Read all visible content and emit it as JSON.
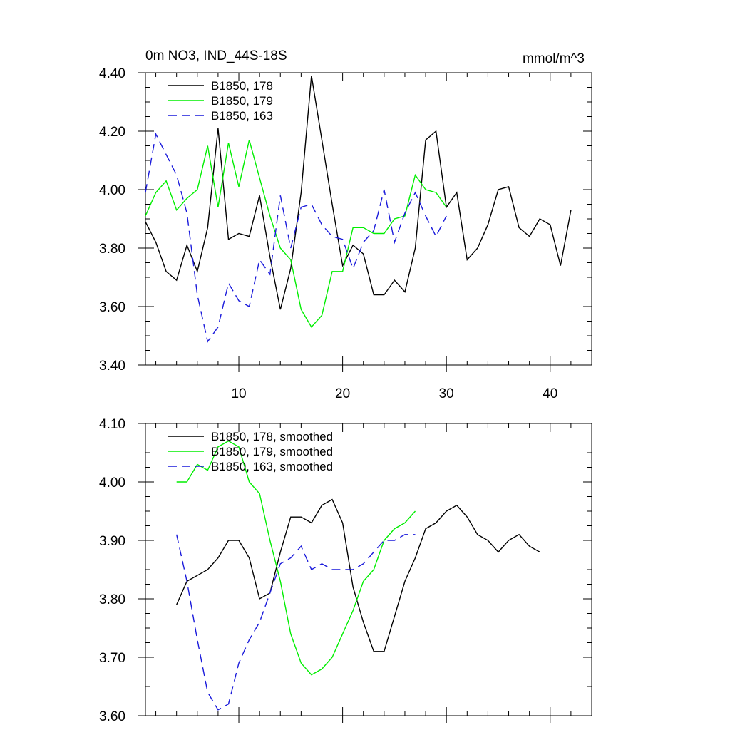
{
  "chart_data": [
    {
      "type": "line",
      "title_left": "0m NO3, IND_44S-18S",
      "title_right": "mmol/m^3",
      "xlim": [
        1,
        44
      ],
      "ylim": [
        3.4,
        4.4
      ],
      "xticks": [
        10,
        20,
        30,
        40
      ],
      "xtick_labels": [
        "10",
        "20",
        "30",
        "40"
      ],
      "yticks": [
        3.4,
        3.6,
        3.8,
        4.0,
        4.2,
        4.4
      ],
      "ytick_labels": [
        "3.40",
        "3.60",
        "3.80",
        "4.00",
        "4.20",
        "4.40"
      ],
      "legend": "top-left",
      "series": [
        {
          "name": "B1850, 178",
          "color": "#000000",
          "dash": "solid",
          "x": [
            1,
            2,
            3,
            4,
            5,
            6,
            7,
            8,
            9,
            10,
            11,
            12,
            13,
            14,
            15,
            16,
            17,
            18,
            19,
            20,
            21,
            22,
            23,
            24,
            25,
            26,
            27,
            28,
            29,
            30,
            31,
            32,
            33,
            34,
            35,
            36,
            37,
            38,
            39,
            40,
            41,
            42
          ],
          "y": [
            3.89,
            3.82,
            3.72,
            3.69,
            3.81,
            3.72,
            3.87,
            4.21,
            3.83,
            3.85,
            3.84,
            3.98,
            3.77,
            3.59,
            3.73,
            3.99,
            4.39,
            4.17,
            3.95,
            3.74,
            3.81,
            3.78,
            3.64,
            3.64,
            3.69,
            3.65,
            3.8,
            4.17,
            4.2,
            3.94,
            3.99,
            3.76,
            3.8,
            3.88,
            4.0,
            4.01,
            3.87,
            3.84,
            3.9,
            3.88,
            3.74,
            3.93
          ]
        },
        {
          "name": "B1850, 179",
          "color": "#00ee00",
          "dash": "solid",
          "x": [
            1,
            2,
            3,
            4,
            5,
            6,
            7,
            8,
            9,
            10,
            11,
            12,
            13,
            14,
            15,
            16,
            17,
            18,
            19,
            20,
            21,
            22,
            23,
            24,
            25,
            26,
            27,
            28,
            29,
            30
          ],
          "y": [
            3.91,
            3.99,
            4.03,
            3.93,
            3.97,
            4.0,
            4.15,
            3.94,
            4.16,
            4.01,
            4.17,
            4.04,
            3.91,
            3.8,
            3.76,
            3.59,
            3.53,
            3.57,
            3.72,
            3.72,
            3.87,
            3.87,
            3.85,
            3.85,
            3.9,
            3.91,
            4.05,
            4.0,
            3.99,
            3.94
          ]
        },
        {
          "name": "B1850, 163",
          "color": "#1a1adb",
          "dash": "dashed",
          "x": [
            1,
            2,
            3,
            4,
            5,
            6,
            7,
            8,
            9,
            10,
            11,
            12,
            13,
            14,
            15,
            16,
            17,
            18,
            19,
            20,
            21,
            22,
            23,
            24,
            25,
            26,
            27,
            28,
            29,
            30
          ],
          "y": [
            3.99,
            4.19,
            4.12,
            4.05,
            3.92,
            3.64,
            3.48,
            3.53,
            3.68,
            3.62,
            3.6,
            3.76,
            3.71,
            3.98,
            3.8,
            3.94,
            3.95,
            3.88,
            3.84,
            3.83,
            3.73,
            3.82,
            3.86,
            4.0,
            3.82,
            3.92,
            3.99,
            3.91,
            3.84,
            3.91
          ]
        }
      ]
    },
    {
      "type": "line",
      "xlim": [
        1,
        44
      ],
      "ylim": [
        3.6,
        4.1
      ],
      "xticks": [
        10,
        20,
        30,
        40
      ],
      "yticks": [
        3.6,
        3.7,
        3.8,
        3.9,
        4.0,
        4.1
      ],
      "ytick_labels": [
        "3.60",
        "3.70",
        "3.80",
        "3.90",
        "4.00",
        "4.10"
      ],
      "legend": "top-left",
      "series": [
        {
          "name": "B1850, 178, smoothed",
          "color": "#000000",
          "dash": "solid",
          "x": [
            4,
            5,
            6,
            7,
            8,
            9,
            10,
            11,
            12,
            13,
            14,
            15,
            16,
            17,
            18,
            19,
            20,
            21,
            22,
            23,
            24,
            25,
            26,
            27,
            28,
            29,
            30,
            31,
            32,
            33,
            34,
            35,
            36,
            37,
            38,
            39
          ],
          "y": [
            3.79,
            3.83,
            3.84,
            3.85,
            3.87,
            3.9,
            3.9,
            3.87,
            3.8,
            3.81,
            3.88,
            3.94,
            3.94,
            3.93,
            3.96,
            3.97,
            3.93,
            3.82,
            3.76,
            3.71,
            3.71,
            3.77,
            3.83,
            3.87,
            3.92,
            3.93,
            3.95,
            3.96,
            3.94,
            3.91,
            3.9,
            3.88,
            3.9,
            3.91,
            3.89,
            3.88
          ]
        },
        {
          "name": "B1850, 179, smoothed",
          "color": "#00ee00",
          "dash": "solid",
          "x": [
            4,
            5,
            6,
            7,
            8,
            9,
            10,
            11,
            12,
            13,
            14,
            15,
            16,
            17,
            18,
            19,
            20,
            21,
            22,
            23,
            24,
            25,
            26,
            27
          ],
          "y": [
            4.0,
            4.0,
            4.03,
            4.02,
            4.06,
            4.07,
            4.06,
            4.0,
            3.98,
            3.9,
            3.83,
            3.74,
            3.69,
            3.67,
            3.68,
            3.7,
            3.74,
            3.78,
            3.83,
            3.85,
            3.9,
            3.92,
            3.93,
            3.95
          ]
        },
        {
          "name": "B1850, 163, smoothed",
          "color": "#1a1adb",
          "dash": "dashed",
          "x": [
            4,
            5,
            6,
            7,
            8,
            9,
            10,
            11,
            12,
            13,
            14,
            15,
            16,
            17,
            18,
            19,
            20,
            21,
            22,
            23,
            24,
            25,
            26,
            27
          ],
          "y": [
            3.91,
            3.83,
            3.73,
            3.64,
            3.61,
            3.62,
            3.69,
            3.73,
            3.76,
            3.81,
            3.86,
            3.87,
            3.89,
            3.85,
            3.86,
            3.85,
            3.85,
            3.85,
            3.86,
            3.88,
            3.9,
            3.9,
            3.91,
            3.91
          ]
        }
      ]
    }
  ]
}
